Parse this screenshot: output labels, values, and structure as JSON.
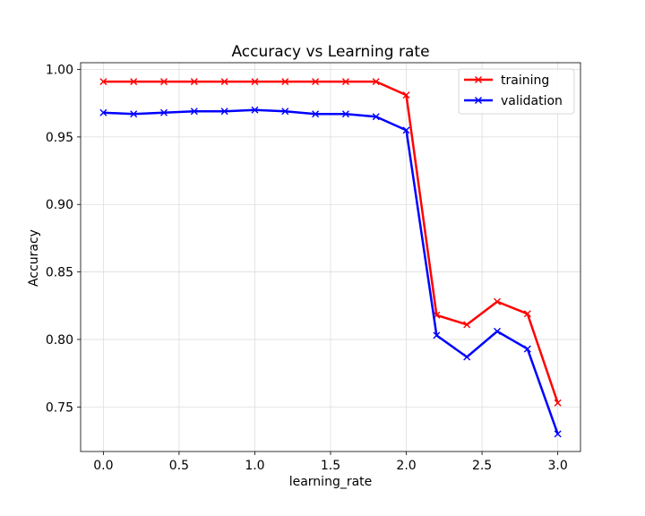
{
  "chart_data": {
    "type": "line",
    "title": "Accuracy vs Learning rate",
    "xlabel": "learning_rate",
    "ylabel": "Accuracy",
    "xlim": [
      -0.15,
      3.15
    ],
    "ylim": [
      0.717,
      1.005
    ],
    "x_ticks": [
      0.0,
      0.5,
      1.0,
      1.5,
      2.0,
      2.5,
      3.0
    ],
    "x_tick_labels": [
      "0.0",
      "0.5",
      "1.0",
      "1.5",
      "2.0",
      "2.5",
      "3.0"
    ],
    "y_ticks": [
      0.75,
      0.8,
      0.85,
      0.9,
      0.95,
      1.0
    ],
    "y_tick_labels": [
      "0.75",
      "0.80",
      "0.85",
      "0.90",
      "0.95",
      "1.00"
    ],
    "grid": true,
    "legend_position": "top-right",
    "x": [
      0.0,
      0.2,
      0.4,
      0.6,
      0.8,
      1.0,
      1.2,
      1.4,
      1.6,
      1.8,
      2.0,
      2.2,
      2.4,
      2.6,
      2.8,
      3.0
    ],
    "series": [
      {
        "name": "training",
        "color": "#ff0000",
        "marker": "x",
        "values": [
          0.991,
          0.991,
          0.991,
          0.991,
          0.991,
          0.991,
          0.991,
          0.991,
          0.991,
          0.991,
          0.981,
          0.818,
          0.811,
          0.828,
          0.819,
          0.753
        ]
      },
      {
        "name": "validation",
        "color": "#0000ff",
        "marker": "x",
        "values": [
          0.968,
          0.967,
          0.968,
          0.969,
          0.969,
          0.97,
          0.969,
          0.967,
          0.967,
          0.965,
          0.955,
          0.803,
          0.787,
          0.806,
          0.793,
          0.73
        ]
      }
    ]
  }
}
